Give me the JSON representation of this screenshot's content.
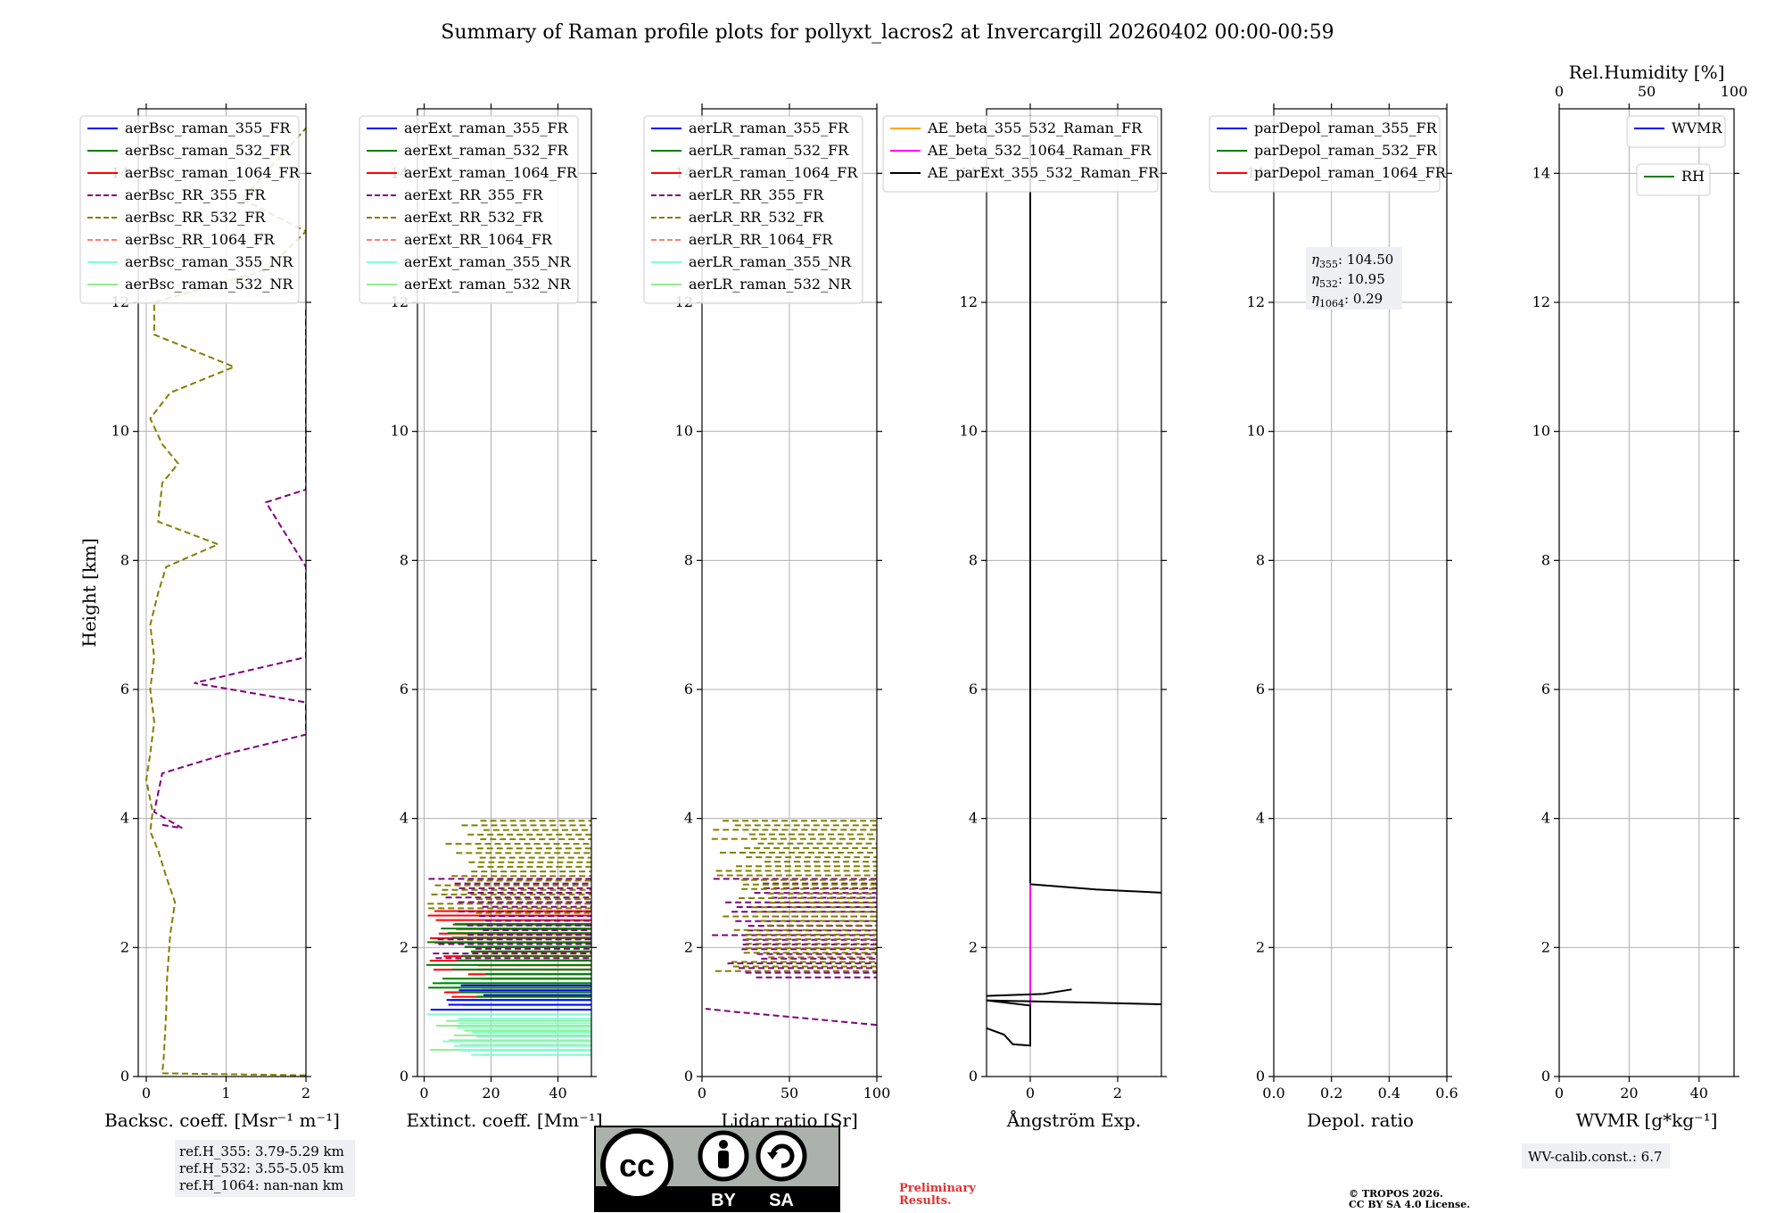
{
  "title": "Summary of Raman profile plots for pollyxt_lacros2 at Invercargill 20260402 00:00-00:59",
  "footer": {
    "license_badge": {
      "cc": "cc",
      "by": "BY",
      "sa": "SA"
    },
    "preliminary": "Preliminary\nResults.",
    "copyright_line1": "© TROPOS 2026.",
    "copyright_line2": "CC BY SA 4.0 License.",
    "ref_heights": [
      "ref.H_355: 3.79-5.29 km",
      "ref.H_532: 3.55-5.05 km",
      "ref.H_1064: nan-nan km"
    ],
    "wv_calib": "WV-calib.const.: 6.7"
  },
  "colors": {
    "blue": "#0000ff",
    "green": "#008000",
    "red": "#ff0000",
    "purple": "#800080",
    "olive": "#808000",
    "salmon": "#fa8072",
    "aquamarine": "#7fffd4",
    "lightgreen": "#90ee90",
    "orange": "#ffa500",
    "magenta": "#ff00ff",
    "black": "#000000"
  },
  "chart_data": [
    {
      "id": "bsc",
      "type": "line",
      "ylabel": "Height [km]",
      "xlabel": "Backsc. coeff. [Msr⁻¹ m⁻¹]",
      "xlim": [
        -0.1,
        2.0
      ],
      "ylim": [
        0,
        15
      ],
      "xticks": [
        0,
        1,
        2
      ],
      "yticks": [
        0,
        2,
        4,
        6,
        8,
        10,
        12,
        14
      ],
      "legend": {
        "loc": "upper-left",
        "entries": [
          {
            "label": "aerBsc_raman_355_FR",
            "color": "blue",
            "dash": false
          },
          {
            "label": "aerBsc_raman_532_FR",
            "color": "green",
            "dash": false
          },
          {
            "label": "aerBsc_raman_1064_FR",
            "color": "red",
            "dash": false
          },
          {
            "label": "aerBsc_RR_355_FR",
            "color": "purple",
            "dash": true
          },
          {
            "label": "aerBsc_RR_532_FR",
            "color": "olive",
            "dash": true
          },
          {
            "label": "aerBsc_RR_1064_FR",
            "color": "salmon",
            "dash": true
          },
          {
            "label": "aerBsc_raman_355_NR",
            "color": "aquamarine",
            "dash": false
          },
          {
            "label": "aerBsc_raman_532_NR",
            "color": "lightgreen",
            "dash": false
          }
        ]
      },
      "series": [
        {
          "name": "aerBsc_RR_532_FR",
          "color": "olive",
          "dash": true,
          "points": [
            [
              2.0,
              0.02
            ],
            [
              0.2,
              0.05
            ],
            [
              0.22,
              0.3
            ],
            [
              0.25,
              1.0
            ],
            [
              0.26,
              1.5
            ],
            [
              0.3,
              2.2
            ],
            [
              0.36,
              2.7
            ],
            [
              0.25,
              3.1
            ],
            [
              0.15,
              3.5
            ],
            [
              0.05,
              3.8
            ],
            [
              0.08,
              4.1
            ],
            [
              0.0,
              4.6
            ],
            [
              0.05,
              5.0
            ],
            [
              0.1,
              5.5
            ],
            [
              0.05,
              6.0
            ],
            [
              0.1,
              6.5
            ],
            [
              0.05,
              7.0
            ],
            [
              0.15,
              7.5
            ],
            [
              0.25,
              7.9
            ],
            [
              0.9,
              8.25
            ],
            [
              0.15,
              8.6
            ],
            [
              0.2,
              9.2
            ],
            [
              0.4,
              9.5
            ],
            [
              0.2,
              9.8
            ],
            [
              0.05,
              10.2
            ],
            [
              0.3,
              10.6
            ],
            [
              1.1,
              11.0
            ],
            [
              0.1,
              11.5
            ],
            [
              0.1,
              12.0
            ],
            [
              1.5,
              12.5
            ],
            [
              2.0,
              13.1
            ],
            [
              1.2,
              13.6
            ],
            [
              2.0,
              14.7
            ]
          ]
        },
        {
          "name": "aerBsc_RR_355_FR",
          "color": "purple",
          "dash": true,
          "points": [
            [
              0.2,
              3.9
            ],
            [
              0.45,
              3.85
            ],
            [
              0.1,
              4.1
            ],
            [
              0.2,
              4.7
            ],
            [
              1.0,
              5.0
            ],
            [
              2.0,
              5.3
            ],
            [
              2.0,
              5.8
            ],
            [
              0.6,
              6.1
            ],
            [
              2.0,
              6.5
            ],
            [
              2.0,
              6.9
            ],
            [
              2.0,
              7.3
            ],
            [
              2.0,
              7.6
            ],
            [
              2.0,
              7.9
            ],
            [
              1.5,
              8.9
            ],
            [
              2.0,
              9.1
            ],
            [
              2.0,
              9.6
            ],
            [
              2.0,
              9.75
            ],
            [
              2.0,
              11.15
            ],
            [
              2.0,
              11.7
            ],
            [
              2.0,
              11.9
            ]
          ]
        }
      ]
    },
    {
      "id": "ext",
      "type": "line",
      "xlabel": "Extinct. coeff. [Mm⁻¹]",
      "xlim": [
        -2,
        50
      ],
      "ylim": [
        0,
        15
      ],
      "xticks": [
        0,
        20,
        40
      ],
      "yticks": [
        0,
        2,
        4,
        6,
        8,
        10,
        12,
        14
      ],
      "legend": {
        "loc": "upper-left",
        "entries": [
          {
            "label": "aerExt_raman_355_FR",
            "color": "blue",
            "dash": false
          },
          {
            "label": "aerExt_raman_532_FR",
            "color": "green",
            "dash": false
          },
          {
            "label": "aerExt_raman_1064_FR",
            "color": "red",
            "dash": false
          },
          {
            "label": "aerExt_RR_355_FR",
            "color": "purple",
            "dash": true
          },
          {
            "label": "aerExt_RR_532_FR",
            "color": "olive",
            "dash": true
          },
          {
            "label": "aerExt_RR_1064_FR",
            "color": "salmon",
            "dash": true
          },
          {
            "label": "aerExt_raman_355_NR",
            "color": "aquamarine",
            "dash": false
          },
          {
            "label": "aerExt_raman_532_NR",
            "color": "lightgreen",
            "dash": false
          }
        ]
      },
      "series": [
        {
          "name": "aerExt_raman_532_NR",
          "color": "lightgreen",
          "band": [
            0.3,
            0.9
          ]
        },
        {
          "name": "aerExt_raman_355_NR",
          "color": "aquamarine",
          "band": [
            0.3,
            1.7
          ]
        },
        {
          "name": "aerExt_raman_355_FR",
          "color": "blue",
          "band": [
            1.0,
            1.45
          ]
        },
        {
          "name": "aerExt_raman_1064_FR",
          "color": "red",
          "band": [
            1.2,
            2.6
          ]
        },
        {
          "name": "aerExt_raman_532_FR",
          "color": "green",
          "band": [
            1.2,
            2.4
          ]
        },
        {
          "name": "aerExt_RR_355_FR",
          "color": "purple",
          "band": [
            1.8,
            3.1
          ],
          "dash": true
        },
        {
          "name": "aerExt_RR_532_FR",
          "color": "olive",
          "band": [
            2.5,
            4.0
          ],
          "dash": true
        }
      ]
    },
    {
      "id": "lr",
      "type": "line",
      "xlabel": "Lidar ratio [Sr]",
      "xlim": [
        0,
        100
      ],
      "ylim": [
        0,
        15
      ],
      "xticks": [
        0,
        50,
        100
      ],
      "yticks": [
        0,
        2,
        4,
        6,
        8,
        10,
        12,
        14
      ],
      "legend": {
        "loc": "upper-left",
        "entries": [
          {
            "label": "aerLR_raman_355_FR",
            "color": "blue",
            "dash": false
          },
          {
            "label": "aerLR_raman_532_FR",
            "color": "green",
            "dash": false
          },
          {
            "label": "aerLR_raman_1064_FR",
            "color": "red",
            "dash": false
          },
          {
            "label": "aerLR_RR_355_FR",
            "color": "purple",
            "dash": true
          },
          {
            "label": "aerLR_RR_532_FR",
            "color": "olive",
            "dash": true
          },
          {
            "label": "aerLR_RR_1064_FR",
            "color": "salmon",
            "dash": true
          },
          {
            "label": "aerLR_raman_355_NR",
            "color": "aquamarine",
            "dash": false
          },
          {
            "label": "aerLR_raman_532_NR",
            "color": "lightgreen",
            "dash": false
          }
        ]
      },
      "series": [
        {
          "name": "aerLR_RR_355_FR",
          "color": "purple",
          "dash": true,
          "points": [
            [
              100,
              0.8
            ],
            [
              60,
              0.9
            ],
            [
              20,
              1.0
            ],
            [
              2,
              1.05
            ]
          ]
        },
        {
          "name": "aerLR_RR_355_FR_upper",
          "color": "purple",
          "dash": true,
          "band": [
            1.5,
            3.1
          ]
        },
        {
          "name": "aerLR_RR_532_FR_upper",
          "color": "olive",
          "dash": true,
          "band": [
            1.6,
            4.0
          ]
        }
      ]
    },
    {
      "id": "ae",
      "type": "line",
      "xlabel": "Ångström Exp.",
      "xlim": [
        -1,
        3
      ],
      "ylim": [
        0,
        15
      ],
      "xticks": [
        0,
        2
      ],
      "yticks": [
        0,
        2,
        4,
        6,
        8,
        10,
        12,
        14
      ],
      "legend": {
        "loc": "upper-left",
        "entries": [
          {
            "label": "AE_beta_355_532_Raman_FR",
            "color": "orange",
            "dash": false
          },
          {
            "label": "AE_beta_532_1064_Raman_FR",
            "color": "magenta",
            "dash": false
          },
          {
            "label": "AE_parExt_355_532_Raman_FR",
            "color": "black",
            "dash": false
          }
        ]
      },
      "series": [
        {
          "name": "AE_beta_532_1064_Raman_FR",
          "color": "magenta",
          "points": [
            [
              0,
              0.5
            ],
            [
              0,
              3.0
            ]
          ]
        },
        {
          "name": "AE_parExt_355_532_Raman_FR",
          "color": "black",
          "points": [
            [
              -1,
              0.75
            ],
            [
              -0.6,
              0.65
            ],
            [
              -0.4,
              0.5
            ],
            [
              0,
              0.48
            ],
            [
              0,
              1.1
            ],
            [
              -1,
              1.18
            ],
            [
              3,
              1.12
            ]
          ]
        },
        {
          "name": "AE_parExt_355_532_Raman_FR_b",
          "color": "black",
          "points": [
            [
              -1,
              1.25
            ],
            [
              0.3,
              1.28
            ],
            [
              0.95,
              1.35
            ]
          ]
        },
        {
          "name": "AE_parExt_355_532_Raman_FR_c",
          "color": "black",
          "points": [
            [
              0,
              2.98
            ],
            [
              1.5,
              2.9
            ],
            [
              3,
              2.85
            ]
          ]
        },
        {
          "name": "AE_parExt_355_532_Raman_FR_d",
          "color": "black",
          "points": [
            [
              0,
              3.0
            ],
            [
              0,
              14.9
            ]
          ]
        }
      ]
    },
    {
      "id": "depol",
      "type": "line",
      "xlabel": "Depol. ratio",
      "xlim": [
        0.0,
        0.6
      ],
      "ylim": [
        0,
        15
      ],
      "xticks": [
        0.0,
        0.2,
        0.4,
        0.6
      ],
      "yticks": [
        0,
        2,
        4,
        6,
        8,
        10,
        12,
        14
      ],
      "legend": {
        "loc": "upper-left",
        "entries": [
          {
            "label": "parDepol_raman_355_FR",
            "color": "blue",
            "dash": false
          },
          {
            "label": "parDepol_raman_532_FR",
            "color": "green",
            "dash": false
          },
          {
            "label": "parDepol_raman_1064_FR",
            "color": "red",
            "dash": false
          }
        ]
      },
      "annotation": [
        {
          "sym": "η",
          "sub": "355",
          "val": ": 104.50"
        },
        {
          "sym": "η",
          "sub": "532",
          "val": ": 10.95"
        },
        {
          "sym": "η",
          "sub": "1064",
          "val": ": 0.29"
        }
      ],
      "series": []
    },
    {
      "id": "wv",
      "type": "line",
      "xlabel": "WVMR [g*kg⁻¹]",
      "top_xlabel": "Rel.Humidity [%]",
      "xlim": [
        0,
        50
      ],
      "ylim": [
        0,
        15
      ],
      "xticks": [
        0,
        20,
        40
      ],
      "top_xticks": [
        0,
        50,
        100
      ],
      "yticks": [
        0,
        2,
        4,
        6,
        8,
        10,
        12,
        14
      ],
      "legend": {
        "loc": "upper-right",
        "entries": [
          {
            "label": "WVMR",
            "color": "blue",
            "dash": false
          }
        ]
      },
      "legend2": {
        "loc": "upper-right",
        "entries": [
          {
            "label": "RH",
            "color": "green",
            "dash": false
          }
        ]
      },
      "series": []
    }
  ]
}
